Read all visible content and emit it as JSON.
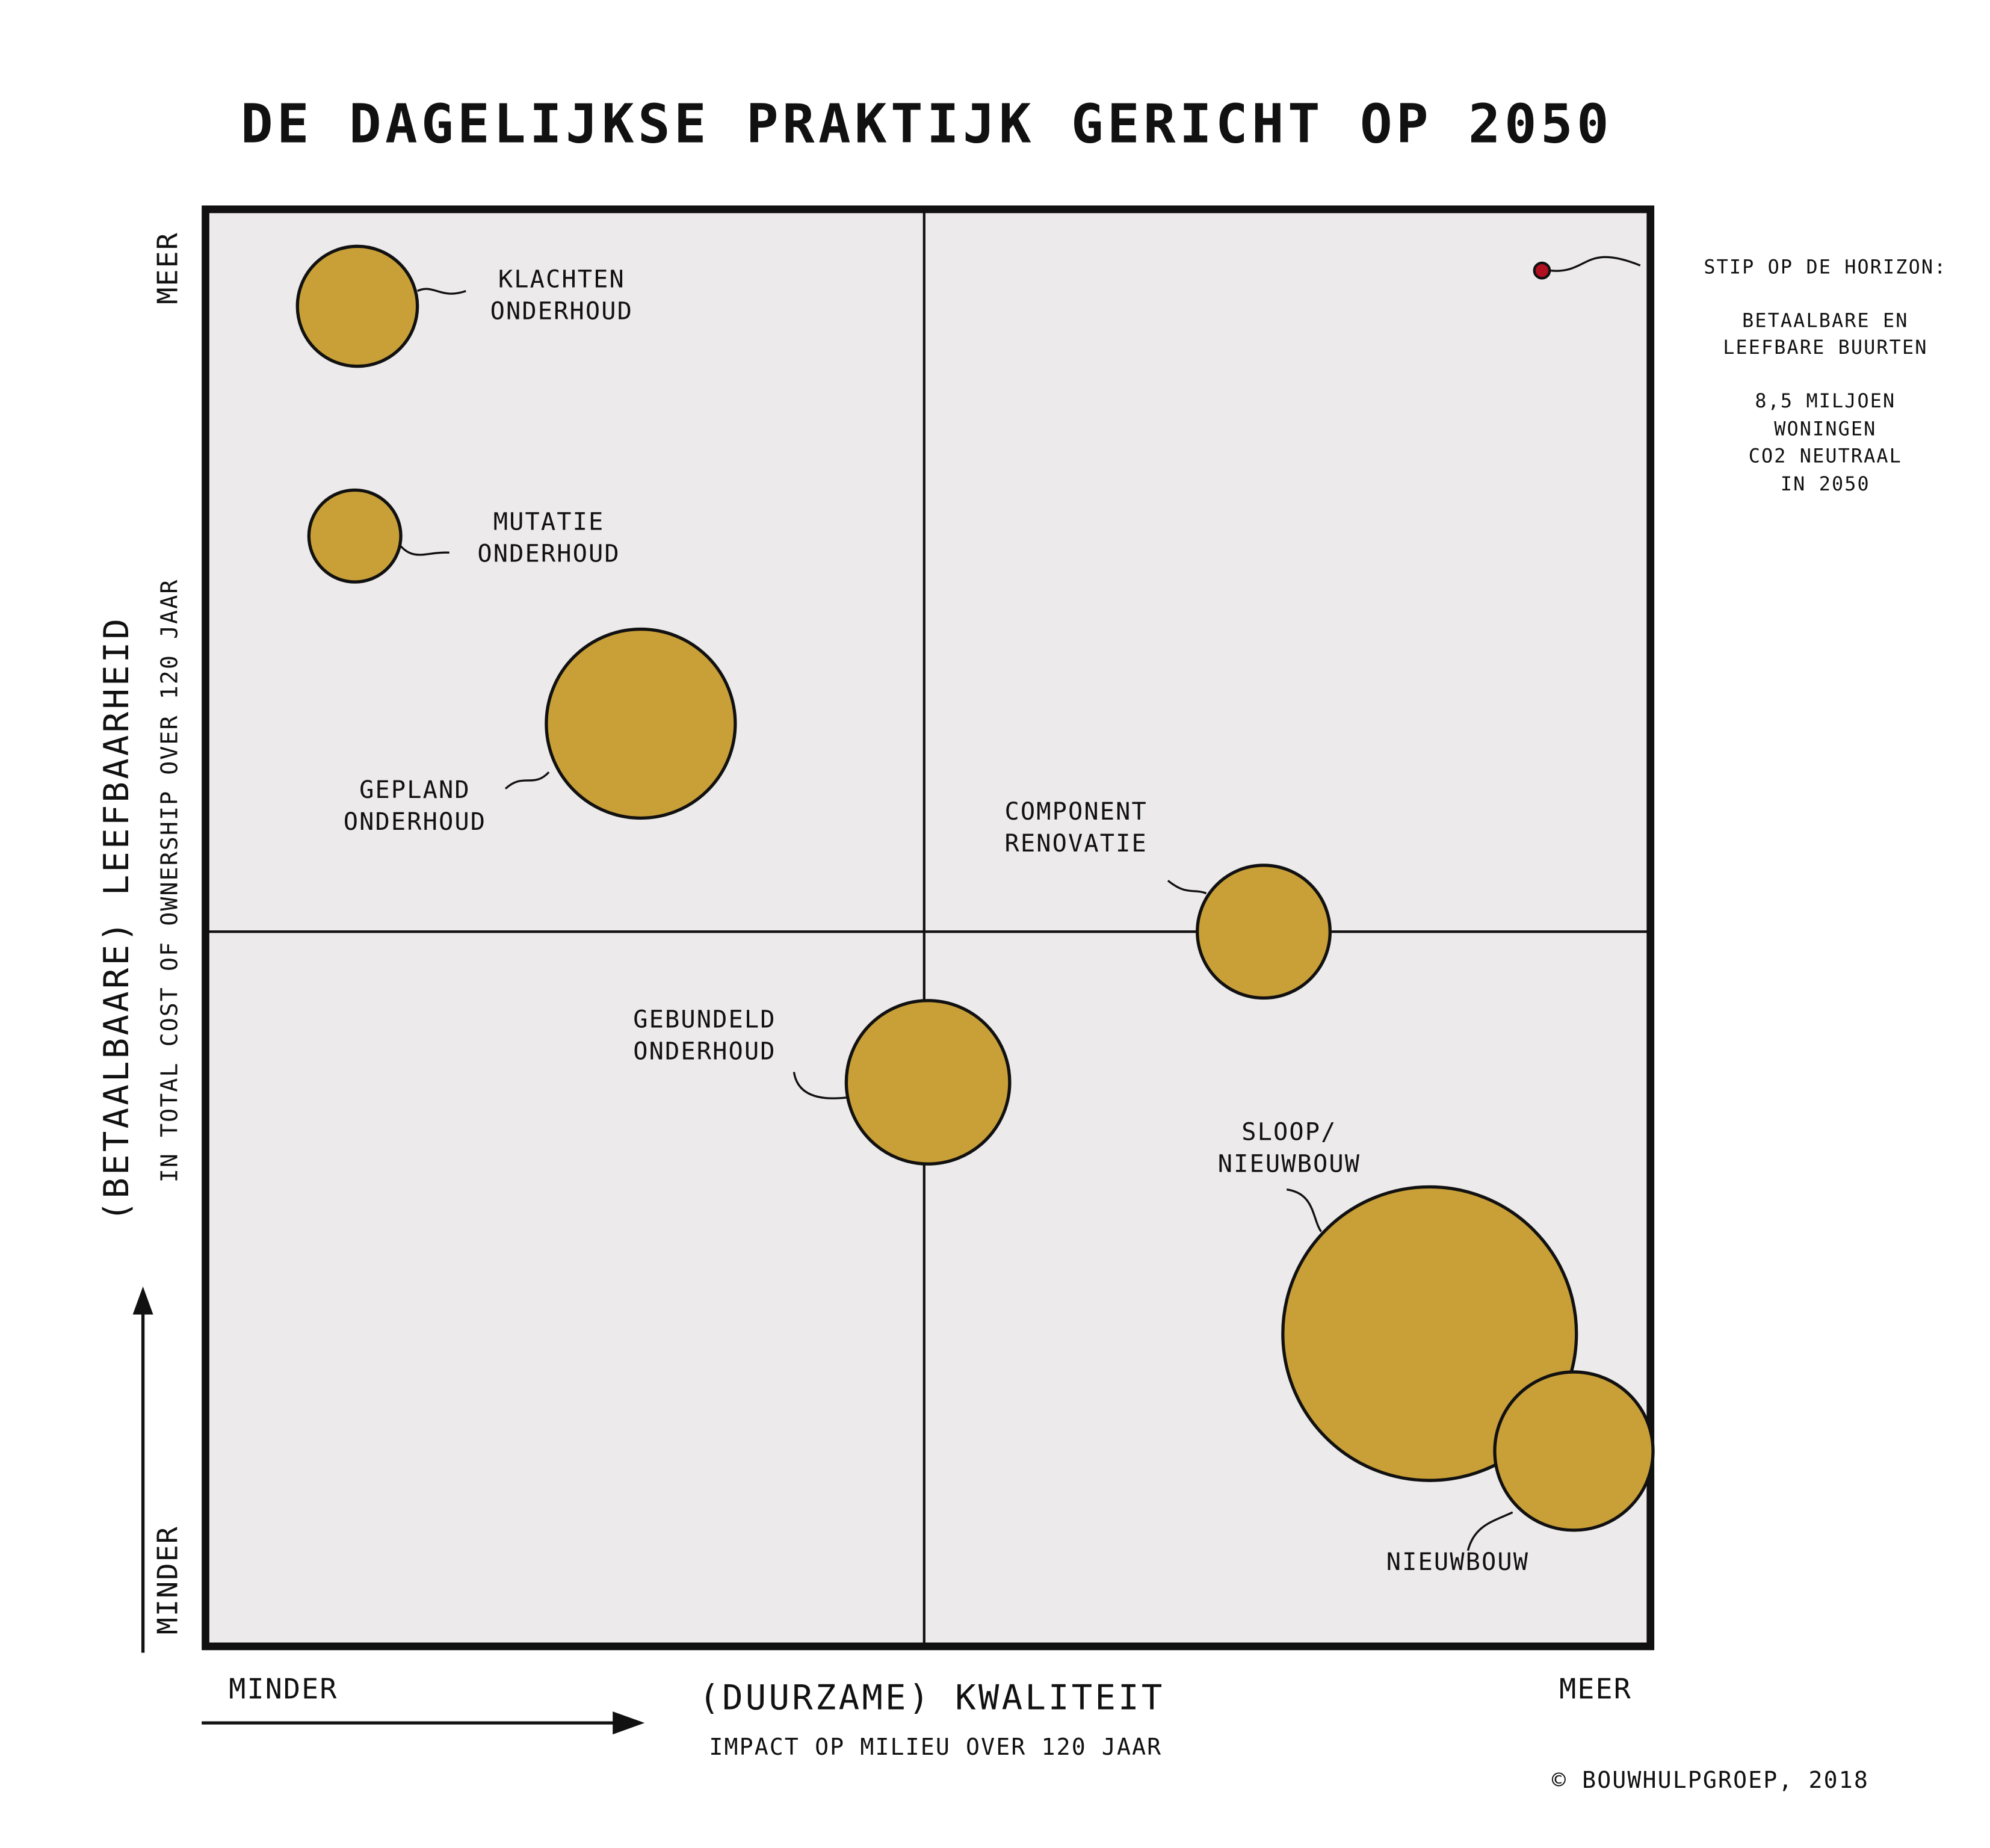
{
  "title": "DE DAGELIJKSE PRAKTIJK GERICHT OP 2050",
  "y_axis": {
    "label": "(BETAALBAARE) LEEFBAARHEID",
    "sublabel": "IN TOTAL COST OF OWNERSHIP OVER 120 JAAR",
    "low": "MINDER",
    "high": "MEER"
  },
  "x_axis": {
    "label": "(DUURZAME) KWALITEIT",
    "sublabel": "IMPACT OP MILIEU OVER 120 JAAR",
    "low": "MINDER",
    "high": "MEER"
  },
  "nodes": [
    {
      "label": [
        "KLACHTEN",
        "ONDERHOUD"
      ]
    },
    {
      "label": [
        "MUTATIE",
        "ONDERHOUD"
      ]
    },
    {
      "label": [
        "GEPLAND",
        "ONDERHOUD"
      ]
    },
    {
      "label": [
        "COMPONENT",
        "RENOVATIE"
      ]
    },
    {
      "label": [
        "GEBUNDELD",
        "ONDERHOUD"
      ]
    },
    {
      "label": [
        "SLOOP/",
        "NIEUWBOUW"
      ]
    },
    {
      "label": [
        "NIEUWBOUW"
      ]
    }
  ],
  "note": {
    "heading": "STIP OP DE HORIZON:",
    "lines": [
      "BETAALBARE EN",
      "LEEFBARE BUURTEN",
      "8,5 MILJOEN",
      "WONINGEN",
      "CO2 NEUTRAAL",
      "IN 2050"
    ]
  },
  "copyright": "© BOUWHULPGROEP, 2018"
}
